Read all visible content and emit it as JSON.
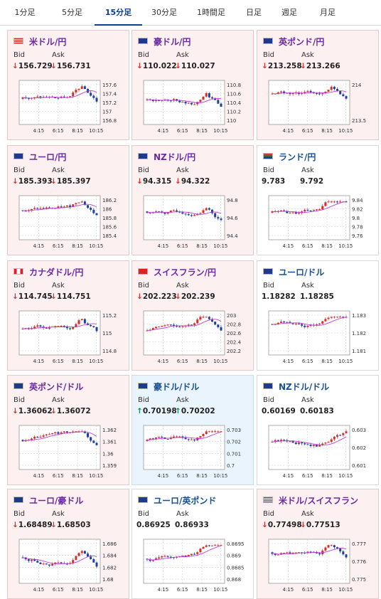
{
  "tabs": [
    {
      "label": "1分足",
      "active": false
    },
    {
      "label": "5分足",
      "active": false
    },
    {
      "label": "15分足",
      "active": true
    },
    {
      "label": "30分足",
      "active": false
    },
    {
      "label": "1時間足",
      "active": false
    },
    {
      "label": "日足",
      "active": false
    },
    {
      "label": "週足",
      "active": false
    },
    {
      "label": "月足",
      "active": false
    }
  ],
  "labels": {
    "bid": "Bid",
    "ask": "Ask"
  },
  "colors": {
    "up_candle": "#d0312d",
    "down_candle": "#1f3fa0",
    "ma_line": "#c33ad8",
    "grid": "#cccccc",
    "active_tab": "#0b3d91"
  },
  "cards": [
    {
      "name": "米ドル/円",
      "flag": "us-flag-icon",
      "trend": "down",
      "bid": "↓156.729",
      "ask": "↓156.731",
      "yticks": [
        "157.6",
        "157.4",
        "157.2",
        "157",
        "156.8"
      ],
      "xticks": [
        "4:15",
        "6:15",
        "8:15",
        "10:15"
      ]
    },
    {
      "name": "豪ドル/円",
      "flag": "au-flag-icon",
      "trend": "down",
      "bid": "↓110.022",
      "ask": "↓110.027",
      "yticks": [
        "110.8",
        "110.6",
        "110.4",
        "110.2",
        "110"
      ],
      "xticks": [
        "4:15",
        "6:15",
        "8:15",
        "10:15"
      ]
    },
    {
      "name": "英ポンド/円",
      "flag": "uk-flag-icon",
      "trend": "down",
      "bid": "↓213.258",
      "ask": "↓213.266",
      "yticks": [
        "214",
        "213.5"
      ],
      "xticks": [
        "4:15",
        "6:15",
        "8:15",
        "10:15"
      ]
    },
    {
      "name": "ユーロ/円",
      "flag": "eu-flag-icon",
      "trend": "down",
      "bid": "↓185.393",
      "ask": "↓185.397",
      "yticks": [
        "186.2",
        "186",
        "185.8",
        "185.6",
        "185.4"
      ],
      "xticks": [
        "4:15",
        "6:15",
        "8:15",
        "10:15"
      ]
    },
    {
      "name": "NZドル/円",
      "flag": "nz-flag-icon",
      "trend": "down",
      "bid": "↓94.315",
      "ask": "↓94.322",
      "yticks": [
        "94.8",
        "94.6",
        "94.4"
      ],
      "xticks": [
        "4:15",
        "6:15",
        "8:15",
        "10:15"
      ]
    },
    {
      "name": "ランド/円",
      "flag": "za-flag-icon",
      "trend": "flat",
      "bid": "9.783",
      "ask": "9.792",
      "yticks": [
        "9.84",
        "9.82",
        "9.8",
        "9.78",
        "9.76"
      ],
      "xticks": [
        "4:15",
        "6:15",
        "8:15",
        "10:15"
      ]
    },
    {
      "name": "カナダドル/円",
      "flag": "ca-flag-icon",
      "trend": "down",
      "bid": "↓114.745",
      "ask": "↓114.751",
      "yticks": [
        "115.2",
        "115",
        "114.8"
      ],
      "xticks": [
        "4:15",
        "6:15",
        "8:15",
        "10:15"
      ]
    },
    {
      "name": "スイスフラン/円",
      "flag": "ch-flag-icon",
      "trend": "down",
      "bid": "↓202.223",
      "ask": "↓202.239",
      "yticks": [
        "203",
        "202.8",
        "202.6",
        "202.4",
        "202.2"
      ],
      "xticks": [
        "4:15",
        "6:15",
        "8:15",
        "10:15"
      ]
    },
    {
      "name": "ユーロ/ドル",
      "flag": "eu-flag-icon",
      "trend": "flat",
      "bid": "1.18282",
      "ask": "1.18285",
      "yticks": [
        "1.183",
        "1.182",
        "1.181"
      ],
      "xticks": [
        "4:15",
        "6:15",
        "8:15",
        "10:15"
      ]
    },
    {
      "name": "英ポンド/ドル",
      "flag": "uk-flag-icon",
      "trend": "down",
      "bid": "↓1.36062",
      "ask": "↓1.36072",
      "yticks": [
        "1.362",
        "1.361",
        "1.36",
        "1.359"
      ],
      "xticks": [
        "4:15",
        "6:15",
        "8:15",
        "10:15"
      ]
    },
    {
      "name": "豪ドル/ドル",
      "flag": "au-flag-icon",
      "trend": "up",
      "bid": "↑0.70198",
      "ask": "↑0.70202",
      "yticks": [
        "0.703",
        "0.702",
        "0.701",
        "0.7"
      ],
      "xticks": [
        "4:15",
        "6:15",
        "8:15",
        "10:15"
      ]
    },
    {
      "name": "NZドル/ドル",
      "flag": "nz-flag-icon",
      "trend": "flat",
      "bid": "0.60169",
      "ask": "0.60183",
      "yticks": [
        "0.603",
        "0.602",
        "0.601"
      ],
      "xticks": [
        "4:15",
        "6:15",
        "8:15",
        "10:15"
      ]
    },
    {
      "name": "ユーロ/豪ドル",
      "flag": "eu-flag-icon",
      "trend": "down",
      "bid": "↓1.68489",
      "ask": "↓1.68503",
      "yticks": [
        "1.686",
        "1.684",
        "1.682",
        "1.68"
      ],
      "xticks": [
        "4:15",
        "6:15",
        "8:15",
        "10:15"
      ]
    },
    {
      "name": "ユーロ/英ポンド",
      "flag": "eu-flag-icon",
      "trend": "flat",
      "bid": "0.86925",
      "ask": "0.86933",
      "yticks": [
        "0.8695",
        "0.869",
        "0.8685",
        "0.868"
      ],
      "xticks": [
        "4:15",
        "6:15",
        "8:15",
        "10:15"
      ]
    },
    {
      "name": "米ドル/スイスフラン",
      "flag": "us-flag-icon",
      "trend": "down",
      "bid": "↓0.77498",
      "ask": "↓0.77513",
      "yticks": [
        "0.777",
        "0.776",
        "0.775"
      ],
      "xticks": [
        "4:15",
        "6:15",
        "8:15",
        "10:15"
      ]
    }
  ]
}
